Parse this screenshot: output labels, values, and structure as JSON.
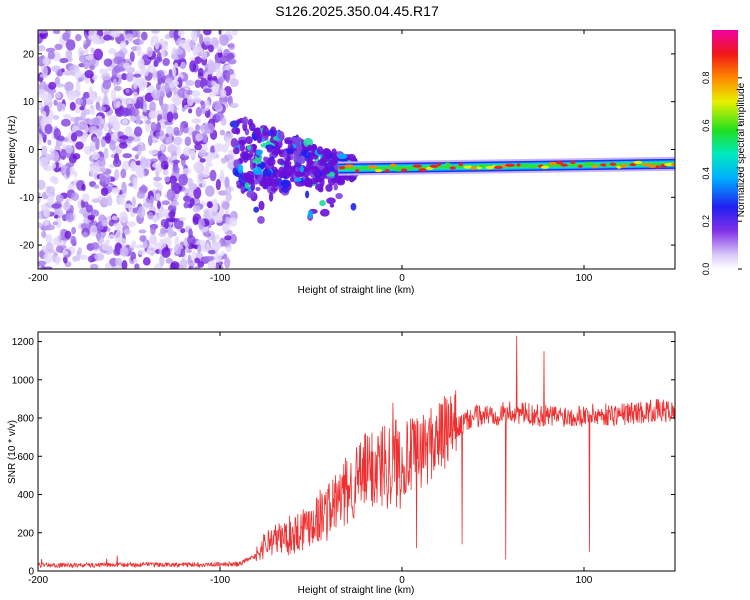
{
  "figure": {
    "title": "S126.2025.350.04.45.R17"
  },
  "chart_data": [
    {
      "type": "heatmap",
      "panel": "spectrogram",
      "xlabel": "Height of straight line (km)",
      "ylabel": "Frequency (Hz)",
      "xlim": [
        -200,
        150
      ],
      "ylim": [
        -25,
        25
      ],
      "xticks": [
        -200,
        -100,
        0,
        100
      ],
      "xtick_labels": [
        "-200",
        "-100",
        "0",
        "100"
      ],
      "yticks": [
        -20,
        -10,
        0,
        10,
        20
      ],
      "ytick_labels": [
        "-20",
        "-10",
        "0",
        "10",
        "20"
      ],
      "colorbar": {
        "label": "Normalized spectral amplitude",
        "range": [
          0,
          1
        ],
        "ticks": [
          0.0,
          0.2,
          0.4,
          0.6,
          0.8
        ],
        "tick_labels": [
          "0.0",
          "0.2",
          "0.4",
          "0.6",
          "0.8"
        ],
        "colormap": "rainbow (white to violet to blue to cyan to green to yellow to red to magenta)"
      },
      "features": {
        "noise_region_x": [
          -200,
          -92
        ],
        "transition_region_x": [
          -92,
          -25
        ],
        "tone_start_x": -35,
        "tone_freq_at_start_hz": -4,
        "tone_freq_at_end_hz": -3,
        "tone_end_x": 150
      }
    },
    {
      "type": "line",
      "panel": "snr",
      "xlabel": "Height of straight line (km)",
      "ylabel": "SNR (10 * v/v)",
      "xlim": [
        -200,
        150
      ],
      "ylim": [
        0,
        1250
      ],
      "xticks": [
        -200,
        -100,
        0,
        100
      ],
      "xtick_labels": [
        "-200",
        "-100",
        "0",
        "100"
      ],
      "yticks": [
        0,
        200,
        400,
        600,
        800,
        1000,
        1200
      ],
      "ytick_labels": [
        "0",
        "200",
        "400",
        "600",
        "800",
        "1000",
        "1200"
      ],
      "series": [
        {
          "name": "SNR",
          "color": "#f03030",
          "envelope_x": [
            -200,
            -90,
            -80,
            -75,
            -60,
            -50,
            -40,
            -30,
            -20,
            -10,
            0,
            10,
            20,
            30,
            40,
            60,
            80,
            100,
            120,
            140,
            150
          ],
          "envelope_y": [
            30,
            35,
            80,
            150,
            190,
            260,
            320,
            420,
            520,
            560,
            580,
            620,
            700,
            750,
            810,
            830,
            810,
            815,
            820,
            840,
            830
          ],
          "spikes_x": [
            -18,
            -5,
            8,
            33,
            57,
            63,
            78,
            103
          ],
          "spikes_y": [
            700,
            880,
            120,
            140,
            60,
            1230,
            1150,
            100
          ]
        }
      ]
    }
  ]
}
